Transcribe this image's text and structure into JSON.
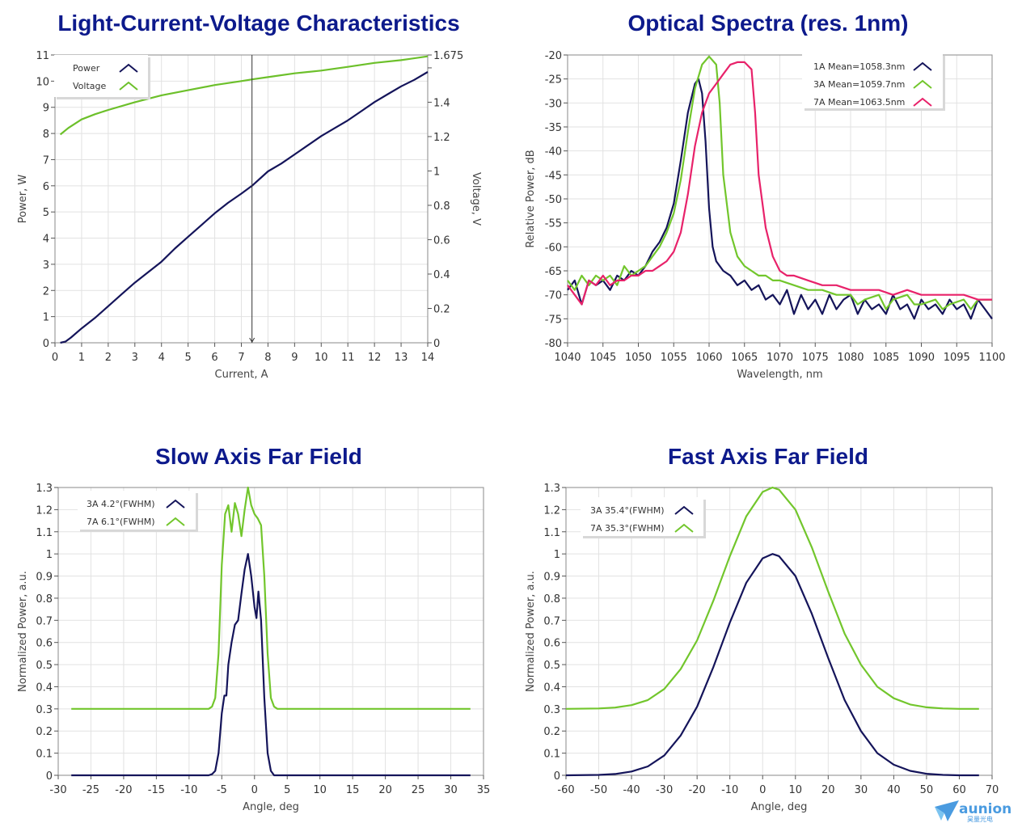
{
  "logo": {
    "text": "aunion",
    "subtext": "昊量光电",
    "color": "#4a9be0"
  },
  "chart_data": [
    {
      "id": "liv",
      "type": "line",
      "title": "Light-Current-Voltage Characteristics",
      "xlabel": "Current, A",
      "ylabel": "Power, W",
      "y2label": "Voltage, V",
      "xlim": [
        0,
        14
      ],
      "ylim": [
        0,
        11
      ],
      "y2lim": [
        0,
        1.675
      ],
      "xticks": [
        0,
        1,
        2,
        3,
        4,
        5,
        6,
        7,
        8,
        9,
        10,
        11,
        12,
        13,
        14
      ],
      "yticks": [
        0,
        1,
        2,
        3,
        4,
        5,
        6,
        7,
        8,
        9,
        10,
        11
      ],
      "y2ticks": [
        0,
        0.2,
        0.4,
        0.6,
        0.8,
        1,
        1.2,
        1.4,
        1.6,
        1.675
      ],
      "y2ticklabels": [
        "0",
        "0.2",
        "0.4",
        "0.6",
        "0.8",
        "1",
        "1.2",
        "1.4",
        "",
        "1.675"
      ],
      "grid": true,
      "legend": "top-left",
      "cursor_x": 7.4,
      "series": [
        {
          "name": "Power",
          "axis": "left",
          "color": "#14145a",
          "x": [
            0.2,
            0.4,
            0.6,
            1,
            1.5,
            2,
            2.5,
            3,
            3.5,
            4,
            4.5,
            5,
            5.5,
            6,
            6.5,
            7,
            7.4,
            8,
            8.5,
            9,
            9.5,
            10,
            10.5,
            11,
            11.5,
            12,
            12.5,
            13,
            13.5,
            14
          ],
          "y": [
            0,
            0.05,
            0.2,
            0.55,
            0.95,
            1.4,
            1.85,
            2.3,
            2.7,
            3.1,
            3.6,
            4.05,
            4.5,
            4.95,
            5.35,
            5.7,
            6.0,
            6.55,
            6.85,
            7.2,
            7.55,
            7.9,
            8.2,
            8.5,
            8.85,
            9.2,
            9.5,
            9.8,
            10.05,
            10.35
          ]
        },
        {
          "name": "Voltage",
          "axis": "right",
          "color": "#6cc02a",
          "x": [
            0.2,
            0.5,
            1,
            1.5,
            2,
            3,
            4,
            5,
            6,
            7,
            7.4,
            8,
            9,
            10,
            11,
            12,
            13,
            14
          ],
          "y": [
            1.212,
            1.25,
            1.3,
            1.33,
            1.355,
            1.4,
            1.44,
            1.47,
            1.5,
            1.523,
            1.533,
            1.546,
            1.568,
            1.584,
            1.606,
            1.629,
            1.645,
            1.667
          ]
        }
      ]
    },
    {
      "id": "spectra",
      "type": "line",
      "title": "Optical Spectra (res. 1nm)",
      "xlabel": "Wavelength, nm",
      "ylabel": "Relative Power, dB",
      "xlim": [
        1040,
        1100
      ],
      "ylim": [
        -80,
        -20
      ],
      "xticks": [
        1040,
        1045,
        1050,
        1055,
        1060,
        1065,
        1070,
        1075,
        1080,
        1085,
        1090,
        1095,
        1100
      ],
      "yticks": [
        -80,
        -75,
        -70,
        -65,
        -60,
        -55,
        -50,
        -45,
        -40,
        -35,
        -30,
        -25,
        -20
      ],
      "grid": true,
      "legend": "top-right",
      "series": [
        {
          "name": "1A Mean=1058.3nm",
          "color": "#14145a",
          "x": [
            1040,
            1041,
            1042,
            1043,
            1044,
            1045,
            1046,
            1047,
            1048,
            1049,
            1050,
            1051,
            1052,
            1053,
            1054,
            1055,
            1056,
            1057,
            1058,
            1058.5,
            1059,
            1059.5,
            1060,
            1060.5,
            1061,
            1062,
            1063,
            1064,
            1065,
            1066,
            1067,
            1068,
            1069,
            1070,
            1071,
            1072,
            1073,
            1074,
            1075,
            1076,
            1077,
            1078,
            1079,
            1080,
            1081,
            1082,
            1083,
            1084,
            1085,
            1086,
            1087,
            1088,
            1089,
            1090,
            1091,
            1092,
            1093,
            1094,
            1095,
            1096,
            1097,
            1098,
            1099,
            1100
          ],
          "y": [
            -69,
            -67,
            -72,
            -67,
            -68,
            -67,
            -69,
            -66,
            -67,
            -65,
            -66,
            -64,
            -61,
            -59,
            -56,
            -51,
            -42,
            -32,
            -26,
            -25,
            -28,
            -38,
            -52,
            -60,
            -63,
            -65,
            -66,
            -68,
            -67,
            -69,
            -68,
            -71,
            -70,
            -72,
            -69,
            -74,
            -70,
            -73,
            -71,
            -74,
            -70,
            -73,
            -71,
            -70,
            -74,
            -71,
            -73,
            -72,
            -74,
            -70,
            -73,
            -72,
            -75,
            -71,
            -73,
            -72,
            -74,
            -71,
            -73,
            -72,
            -75,
            -71,
            -73,
            -75
          ]
        },
        {
          "name": "3A Mean=1059.7nm",
          "color": "#72c62c",
          "x": [
            1040,
            1041,
            1042,
            1043,
            1044,
            1045,
            1046,
            1047,
            1048,
            1049,
            1050,
            1051,
            1052,
            1053,
            1054,
            1055,
            1056,
            1057,
            1058,
            1059,
            1060,
            1061,
            1061.5,
            1062,
            1063,
            1064,
            1065,
            1066,
            1067,
            1068,
            1069,
            1070,
            1072,
            1074,
            1076,
            1078,
            1080,
            1081,
            1082,
            1084,
            1085,
            1086,
            1088,
            1089,
            1090,
            1092,
            1093,
            1094,
            1096,
            1097,
            1098,
            1100
          ],
          "y": [
            -67,
            -69,
            -66,
            -68,
            -66,
            -67,
            -66,
            -68,
            -64,
            -66,
            -65,
            -64,
            -62,
            -60,
            -57,
            -53,
            -46,
            -36,
            -27,
            -22,
            -20.3,
            -22,
            -30,
            -45,
            -57,
            -62,
            -64,
            -65,
            -66,
            -66,
            -67,
            -67,
            -68,
            -69,
            -69,
            -70,
            -70,
            -72,
            -71,
            -70,
            -73,
            -71,
            -70,
            -72,
            -72,
            -71,
            -73,
            -72,
            -71,
            -73,
            -71,
            -71
          ]
        },
        {
          "name": "7A Mean=1063.5nm",
          "color": "#e8226a",
          "x": [
            1040,
            1041,
            1042,
            1043,
            1044,
            1045,
            1046,
            1047,
            1048,
            1049,
            1050,
            1051,
            1052,
            1053,
            1054,
            1055,
            1056,
            1057,
            1058,
            1059,
            1060,
            1061,
            1062,
            1063,
            1064,
            1065,
            1066,
            1066.5,
            1067,
            1068,
            1069,
            1070,
            1071,
            1072,
            1074,
            1076,
            1078,
            1080,
            1082,
            1084,
            1086,
            1088,
            1090,
            1092,
            1094,
            1096,
            1098,
            1100
          ],
          "y": [
            -68,
            -70,
            -72,
            -67,
            -68,
            -66,
            -68,
            -67,
            -67,
            -66,
            -66,
            -65,
            -65,
            -64,
            -63,
            -61,
            -57,
            -49,
            -39,
            -32,
            -28,
            -26,
            -24,
            -22,
            -21.5,
            -21.5,
            -23,
            -32,
            -45,
            -56,
            -62,
            -65,
            -66,
            -66,
            -67,
            -68,
            -68,
            -69,
            -69,
            -69,
            -70,
            -69,
            -70,
            -70,
            -70,
            -70,
            -71,
            -71
          ]
        }
      ]
    },
    {
      "id": "slow-axis",
      "type": "line",
      "title": "Slow Axis Far Field",
      "xlabel": "Angle, deg",
      "ylabel": "Normalized Power, a.u.",
      "xlim": [
        -30,
        35
      ],
      "ylim": [
        0,
        1.3
      ],
      "xticks": [
        -30,
        -25,
        -20,
        -15,
        -10,
        -5,
        0,
        5,
        10,
        15,
        20,
        25,
        30,
        35
      ],
      "yticks": [
        0,
        0.1,
        0.2,
        0.3,
        0.4,
        0.5,
        0.6,
        0.7,
        0.8,
        0.9,
        1,
        1.1,
        1.2,
        1.3
      ],
      "grid": true,
      "legend": "top-left",
      "series": [
        {
          "name": "3A 4.2°(FWHM)",
          "color": "#14145a",
          "x": [
            -28,
            -7,
            -6.5,
            -6,
            -5.5,
            -5,
            -4.6,
            -4.3,
            -4,
            -3.5,
            -3,
            -2.5,
            -2,
            -1.5,
            -1,
            -0.5,
            0,
            0.3,
            0.6,
            1,
            1.5,
            2,
            2.5,
            3,
            33
          ],
          "y": [
            0,
            0,
            0.005,
            0.02,
            0.1,
            0.28,
            0.36,
            0.36,
            0.5,
            0.6,
            0.68,
            0.7,
            0.82,
            0.93,
            1.0,
            0.9,
            0.76,
            0.71,
            0.83,
            0.7,
            0.35,
            0.1,
            0.02,
            0,
            0
          ]
        },
        {
          "name": "7A 6.1°(FWHM)",
          "color": "#72c62c",
          "x": [
            -28,
            -7,
            -6.5,
            -6,
            -5.5,
            -5,
            -4.5,
            -4,
            -3.5,
            -3,
            -2.5,
            -2,
            -1.5,
            -1,
            -0.5,
            0,
            0.5,
            1,
            1.5,
            2,
            2.5,
            3,
            3.5,
            33
          ],
          "y": [
            0.3,
            0.3,
            0.31,
            0.35,
            0.55,
            0.95,
            1.18,
            1.22,
            1.1,
            1.23,
            1.18,
            1.08,
            1.2,
            1.3,
            1.22,
            1.18,
            1.16,
            1.13,
            0.9,
            0.55,
            0.35,
            0.31,
            0.3,
            0.3
          ]
        }
      ]
    },
    {
      "id": "fast-axis",
      "type": "line",
      "title": "Fast Axis Far Field",
      "xlabel": "Angle, deg",
      "ylabel": "Normalized Power, a.u.",
      "xlim": [
        -60,
        70
      ],
      "ylim": [
        0,
        1.3
      ],
      "xticks": [
        -60,
        -50,
        -40,
        -30,
        -20,
        -10,
        0,
        10,
        20,
        30,
        40,
        50,
        60,
        70
      ],
      "yticks": [
        0,
        0.1,
        0.2,
        0.3,
        0.4,
        0.5,
        0.6,
        0.7,
        0.8,
        0.9,
        1,
        1.1,
        1.2,
        1.3
      ],
      "grid": true,
      "legend": "top-left",
      "series": [
        {
          "name": "3A 35.4°(FWHM)",
          "color": "#14145a",
          "x": [
            -60,
            -50,
            -45,
            -40,
            -35,
            -30,
            -25,
            -20,
            -15,
            -10,
            -5,
            0,
            3,
            5,
            10,
            15,
            20,
            25,
            30,
            35,
            40,
            45,
            50,
            55,
            60,
            66
          ],
          "y": [
            0,
            0.002,
            0.006,
            0.017,
            0.04,
            0.09,
            0.18,
            0.31,
            0.49,
            0.69,
            0.87,
            0.98,
            1.0,
            0.99,
            0.9,
            0.73,
            0.53,
            0.34,
            0.2,
            0.1,
            0.048,
            0.02,
            0.007,
            0.002,
            0,
            0
          ]
        },
        {
          "name": "7A 35.3°(FWHM)",
          "color": "#72c62c",
          "x": [
            -60,
            -50,
            -45,
            -40,
            -35,
            -30,
            -25,
            -20,
            -15,
            -10,
            -5,
            0,
            3,
            5,
            10,
            15,
            20,
            25,
            30,
            35,
            40,
            45,
            50,
            55,
            60,
            66
          ],
          "y": [
            0.3,
            0.302,
            0.306,
            0.317,
            0.34,
            0.39,
            0.48,
            0.61,
            0.79,
            0.99,
            1.17,
            1.28,
            1.3,
            1.29,
            1.2,
            1.03,
            0.83,
            0.64,
            0.5,
            0.4,
            0.348,
            0.32,
            0.307,
            0.302,
            0.3,
            0.3
          ]
        }
      ]
    }
  ]
}
